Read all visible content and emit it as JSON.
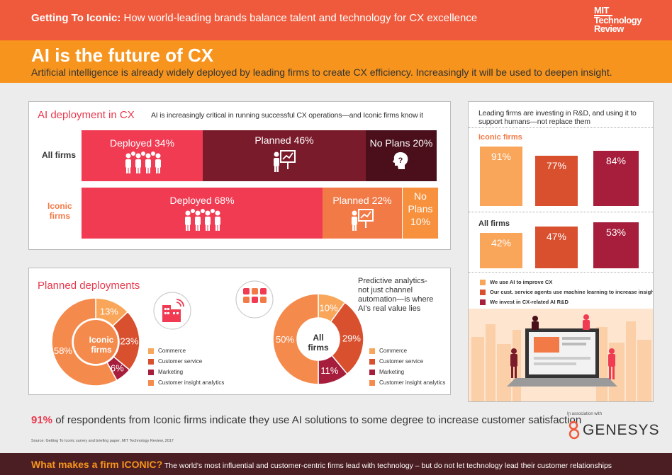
{
  "header": {
    "title_bold": "Getting To Iconic:",
    "title_rest": " How world-leading brands balance talent and technology for CX excellence",
    "logo_line1": "MIT",
    "logo_line2": "Technology",
    "logo_line3": "Review"
  },
  "banner": {
    "heading": "AI is the future of CX",
    "subheading": "Artificial intelligence is already widely deployed by leading firms to create CX efficiency. Increasingly it will be used to deepen insight."
  },
  "colors": {
    "deployed": "#f03b53",
    "planned_all": "#7a1b2b",
    "noplans_all": "#4a0f1a",
    "planned_iconic": "#f27a47",
    "noplans_iconic": "#f7913d",
    "commerce": "#f9a65a",
    "customer_service": "#d9502f",
    "marketing": "#a61e3c",
    "insight": "#f58a4d"
  },
  "icons": [
    "people-group-icon",
    "presentation-chart-icon",
    "question-head-icon",
    "building-wifi-icon",
    "app-cloud-icon"
  ],
  "chart_data": [
    {
      "type": "bar",
      "title": "AI deployment in CX",
      "subtitle": "AI is increasingly critical in running successful CX operations—and Iconic firms know it",
      "categories": [
        "All firms",
        "Iconic firms"
      ],
      "series": [
        {
          "name": "Deployed",
          "values": [
            34,
            68
          ]
        },
        {
          "name": "Planned",
          "values": [
            46,
            22
          ]
        },
        {
          "name": "No Plans",
          "values": [
            20,
            10
          ]
        }
      ],
      "labels": {
        "all": [
          "Deployed 34%",
          "Planned 46%",
          "No Plans 20%"
        ],
        "iconic": [
          "Deployed 68%",
          "Planned 22%",
          "No",
          "Plans",
          "10%"
        ]
      },
      "stacked": true
    },
    {
      "type": "pie",
      "title": "Planned deployments",
      "center": "Iconic firms",
      "center_l1": "Iconic",
      "center_l2": "firms",
      "categories": [
        "Commerce",
        "Customer service",
        "Marketing",
        "Customer insight analytics"
      ],
      "values": [
        13,
        23,
        6,
        58
      ],
      "value_labels": [
        "13%",
        "23%",
        "6%",
        "58%"
      ]
    },
    {
      "type": "pie",
      "title": "",
      "center": "All firms",
      "center_l1": "All",
      "center_l2": "firms",
      "annotation": "Predictive analytics-\nnot just channel\nautomation—is where\nAI's real value lies",
      "annotation_lines": [
        "Predictive analytics-",
        "not just channel",
        "automation—is where",
        "AI's real value lies"
      ],
      "categories": [
        "Commerce",
        "Customer service",
        "Marketing",
        "Customer insight analytics"
      ],
      "values": [
        10,
        29,
        11,
        50
      ],
      "value_labels": [
        "10%",
        "29%",
        "11%",
        "50%"
      ]
    },
    {
      "type": "bar",
      "title": "Leading firms are investing in R&D, and using it to support humans—not replace them",
      "title_l1": "Leading firms are investing in R&D, and using it to",
      "title_l2": "support humans—not replace them",
      "categories": [
        "Iconic firms",
        "All firms"
      ],
      "series": [
        {
          "name": "We use AI to improve CX",
          "values": [
            91,
            42
          ]
        },
        {
          "name": "Our cust. service agents use machine learning to increase insight",
          "values": [
            77,
            47
          ]
        },
        {
          "name": "We invest in CX-related AI R&D",
          "values": [
            84,
            53
          ]
        }
      ],
      "value_labels": {
        "iconic": [
          "91%",
          "77%",
          "84%"
        ],
        "all": [
          "42%",
          "47%",
          "53%"
        ]
      },
      "ylim": [
        0,
        100
      ]
    }
  ],
  "stat": {
    "value": "91%",
    "text": " of respondents from Iconic firms indicate they use AI solutions to some degree to increase customer satisfaction"
  },
  "source": "Source: Getting To Iconic survey and briefing paper, MIT Technology Review, 2017",
  "association": {
    "label": "In association with",
    "brand": "GENESYS"
  },
  "footer": {
    "bold": "What makes a firm ICONIC?",
    "text": " The world's most influential and customer-centric firms lead with technology – but do not let technology lead their customer relationships"
  }
}
